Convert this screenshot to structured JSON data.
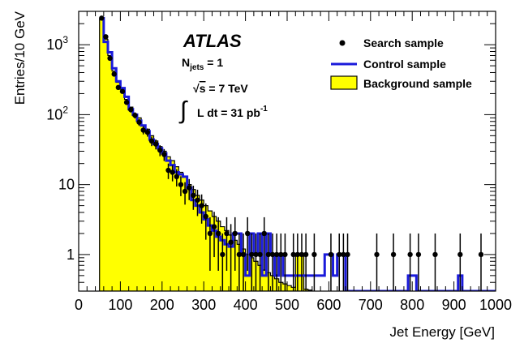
{
  "chart_data": {
    "type": "histogram",
    "xlabel": "Jet Energy [GeV]",
    "ylabel": "Entries/10 GeV",
    "xlim": [
      0,
      1000
    ],
    "ylim": [
      0.3,
      3000
    ],
    "y_scale": "log",
    "bin_width": 10,
    "x_ticks": [
      "0",
      "100",
      "200",
      "300",
      "400",
      "500",
      "600",
      "700",
      "800",
      "900",
      "1000"
    ],
    "y_ticks": [
      {
        "value": 1,
        "base": "1",
        "exp": ""
      },
      {
        "value": 10,
        "base": "10",
        "exp": ""
      },
      {
        "value": 100,
        "base": "10",
        "exp": "2"
      },
      {
        "value": 1000,
        "base": "10",
        "exp": "3"
      }
    ],
    "annotations": {
      "experiment": "ATLAS",
      "njets_label": "N",
      "njets_sub": "jets",
      "njets_value": " = 1",
      "sqrt_symbol": "√",
      "sqrt_s": "s",
      "energy": " = 7 TeV",
      "integral_symbol": "∫",
      "lumi": "L dt = 31 pb",
      "lumi_exp": "-1"
    },
    "legend": [
      {
        "name": "Search sample",
        "style": "marker",
        "color": "#000000"
      },
      {
        "name": "Control sample",
        "style": "line",
        "color": "#1a1adb"
      },
      {
        "name": "Background sample",
        "style": "fill",
        "color": "#ffff00"
      }
    ],
    "series": [
      {
        "name": "Background sample",
        "style": "filled-histogram",
        "bins": [
          [
            50,
            2300
          ],
          [
            60,
            1200
          ],
          [
            70,
            700
          ],
          [
            80,
            420
          ],
          [
            90,
            290
          ],
          [
            100,
            230
          ],
          [
            110,
            165
          ],
          [
            120,
            128
          ],
          [
            130,
            102
          ],
          [
            140,
            90
          ],
          [
            150,
            70
          ],
          [
            160,
            62
          ],
          [
            170,
            50
          ],
          [
            180,
            42
          ],
          [
            190,
            35
          ],
          [
            200,
            30
          ],
          [
            210,
            25
          ],
          [
            220,
            22
          ],
          [
            230,
            18
          ],
          [
            240,
            15
          ],
          [
            250,
            13
          ],
          [
            260,
            10
          ],
          [
            270,
            8.5
          ],
          [
            280,
            7
          ],
          [
            290,
            6
          ],
          [
            300,
            5
          ],
          [
            310,
            4.2
          ],
          [
            320,
            3.5
          ],
          [
            330,
            3
          ],
          [
            340,
            2.5
          ],
          [
            350,
            2.2
          ],
          [
            360,
            1.9
          ],
          [
            370,
            1.6
          ],
          [
            380,
            1.4
          ],
          [
            390,
            1.2
          ],
          [
            400,
            1
          ],
          [
            410,
            0.9
          ],
          [
            420,
            0.8
          ],
          [
            430,
            0.7
          ],
          [
            440,
            0.6
          ],
          [
            450,
            0.55
          ],
          [
            460,
            0.5
          ],
          [
            470,
            0.45
          ],
          [
            480,
            0.4
          ],
          [
            490,
            0.38
          ],
          [
            500,
            0.36
          ],
          [
            510,
            0.34
          ],
          [
            520,
            1
          ],
          [
            530,
            1
          ],
          [
            540,
            0.32
          ],
          [
            550,
            0.31
          ]
        ]
      },
      {
        "name": "Control sample",
        "style": "line-histogram",
        "color": "#1a1adb",
        "bins": [
          [
            50,
            2400
          ],
          [
            60,
            1100
          ],
          [
            70,
            780
          ],
          [
            80,
            460
          ],
          [
            90,
            300
          ],
          [
            100,
            240
          ],
          [
            110,
            180
          ],
          [
            120,
            120
          ],
          [
            130,
            100
          ],
          [
            140,
            82
          ],
          [
            150,
            70
          ],
          [
            160,
            58
          ],
          [
            170,
            44
          ],
          [
            180,
            38
          ],
          [
            190,
            33
          ],
          [
            200,
            28
          ],
          [
            210,
            22
          ],
          [
            220,
            19
          ],
          [
            230,
            15
          ],
          [
            240,
            14
          ],
          [
            250,
            13
          ],
          [
            260,
            9
          ],
          [
            270,
            6
          ],
          [
            280,
            5
          ],
          [
            290,
            4
          ],
          [
            300,
            3.2
          ],
          [
            310,
            2.6
          ],
          [
            320,
            2.2
          ],
          [
            330,
            1.8
          ],
          [
            340,
            1.6
          ],
          [
            350,
            1.4
          ],
          [
            360,
            1.3
          ],
          [
            370,
            2
          ],
          [
            380,
            2
          ],
          [
            390,
            1
          ],
          [
            400,
            0.5
          ],
          [
            410,
            2
          ],
          [
            420,
            1
          ],
          [
            430,
            2
          ],
          [
            440,
            0.5
          ],
          [
            450,
            2
          ],
          [
            460,
            1
          ],
          [
            470,
            0.5
          ],
          [
            480,
            1
          ],
          [
            490,
            0.5
          ],
          [
            500,
            0.5
          ],
          [
            510,
            0.5
          ],
          [
            520,
            0.5
          ],
          [
            530,
            0.5
          ],
          [
            540,
            0.5
          ],
          [
            550,
            0.5
          ],
          [
            560,
            0.5
          ],
          [
            570,
            0.5
          ],
          [
            580,
            0.5
          ],
          [
            590,
            1
          ],
          [
            600,
            1
          ],
          [
            610,
            0.5
          ],
          [
            620,
            1
          ],
          [
            630,
            1
          ],
          [
            640,
            0.3
          ],
          [
            650,
            0.3
          ],
          [
            660,
            0.3
          ],
          [
            670,
            0.3
          ],
          [
            680,
            0.3
          ],
          [
            690,
            0.3
          ],
          [
            700,
            0.3
          ],
          [
            710,
            0.3
          ],
          [
            720,
            0.3
          ],
          [
            730,
            0.3
          ],
          [
            740,
            0.3
          ],
          [
            750,
            0.3
          ],
          [
            760,
            0.3
          ],
          [
            770,
            0.3
          ],
          [
            780,
            0.3
          ],
          [
            790,
            0.5
          ],
          [
            800,
            0.5
          ],
          [
            810,
            0.3
          ],
          [
            820,
            0.3
          ],
          [
            830,
            0.3
          ],
          [
            840,
            0.3
          ],
          [
            850,
            0.3
          ],
          [
            860,
            0.3
          ],
          [
            870,
            0.3
          ],
          [
            880,
            0.3
          ],
          [
            890,
            0.3
          ],
          [
            900,
            0.3
          ],
          [
            910,
            0.5
          ],
          [
            920,
            0.3
          ],
          [
            930,
            0.3
          ],
          [
            940,
            0.3
          ],
          [
            950,
            0.3
          ],
          [
            960,
            0.3
          ],
          [
            970,
            0.3
          ],
          [
            980,
            0.3
          ],
          [
            990,
            0.3
          ]
        ]
      },
      {
        "name": "Search sample",
        "style": "points-with-errors",
        "points": [
          [
            55,
            2400
          ],
          [
            65,
            1300
          ],
          [
            75,
            640
          ],
          [
            85,
            380
          ],
          [
            95,
            245
          ],
          [
            105,
            215
          ],
          [
            115,
            150
          ],
          [
            125,
            118
          ],
          [
            135,
            98
          ],
          [
            145,
            78
          ],
          [
            155,
            60
          ],
          [
            165,
            56
          ],
          [
            175,
            42
          ],
          [
            185,
            38
          ],
          [
            195,
            31
          ],
          [
            205,
            27
          ],
          [
            215,
            16
          ],
          [
            225,
            15
          ],
          [
            235,
            13
          ],
          [
            245,
            10
          ],
          [
            255,
            8
          ],
          [
            265,
            9
          ],
          [
            275,
            7
          ],
          [
            285,
            6
          ],
          [
            295,
            5
          ],
          [
            305,
            3.5
          ],
          [
            315,
            2
          ],
          [
            325,
            2.5
          ],
          [
            335,
            2
          ],
          [
            345,
            1
          ],
          [
            355,
            2
          ],
          [
            365,
            1.5
          ],
          [
            375,
            2
          ],
          [
            385,
            1
          ],
          [
            395,
            1
          ],
          [
            405,
            2
          ],
          [
            415,
            1
          ],
          [
            425,
            1
          ],
          [
            435,
            1
          ],
          [
            445,
            2
          ],
          [
            455,
            1
          ],
          [
            465,
            1
          ],
          [
            475,
            1
          ],
          [
            485,
            1
          ],
          [
            495,
            1
          ],
          [
            515,
            1
          ],
          [
            525,
            1
          ],
          [
            535,
            1
          ],
          [
            545,
            1
          ],
          [
            565,
            1
          ],
          [
            605,
            1
          ],
          [
            625,
            1
          ],
          [
            635,
            1
          ],
          [
            645,
            1
          ],
          [
            715,
            1
          ],
          [
            755,
            1
          ],
          [
            795,
            1
          ],
          [
            815,
            1
          ],
          [
            855,
            1
          ],
          [
            915,
            1
          ],
          [
            965,
            1
          ]
        ]
      }
    ]
  }
}
